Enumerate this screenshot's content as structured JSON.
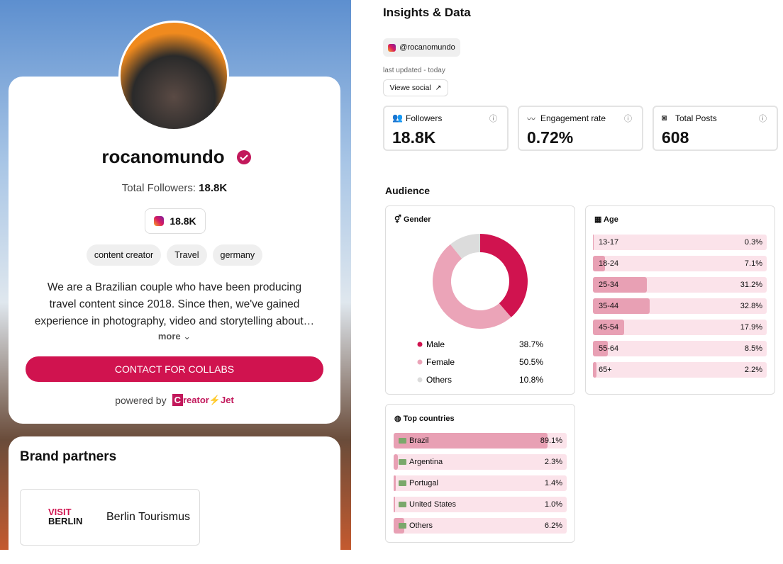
{
  "profile": {
    "name": "rocanomundo",
    "followers_label": "Total Followers:",
    "followers": "18.8K",
    "instagram_followers": "18.8K",
    "tags": [
      "content creator",
      "Travel",
      "germany"
    ],
    "bio": [
      "We are a Brazilian couple who have been producing",
      "travel content since 2018. Since then, we've gained",
      "experience in photography, video and storytelling about…"
    ],
    "more": "more",
    "button": "CONTACT FOR COLLABS",
    "powered_by": "powered by",
    "brand_initial": "C",
    "brand_name": "reator",
    "brand_suffix": "Jet"
  },
  "brand_partners": {
    "title": "Brand partners",
    "partners": [
      {
        "name": "Berlin Tourismus",
        "logo_top": "VISIT",
        "logo_bottom": "BERLIN"
      }
    ]
  },
  "insights": {
    "title": "Insights & Data",
    "handle": "@rocanomundo",
    "last_updated": "last updated - today",
    "view_button": "Viewe social",
    "stats": [
      {
        "label": "Followers",
        "value": "18.8K"
      },
      {
        "label": "Engagement rate",
        "value": "0.72%"
      },
      {
        "label": "Total Posts",
        "value": "608"
      }
    ]
  },
  "audience": {
    "title": "Audience",
    "gender": {
      "title": "Gender",
      "categories": [
        "Male",
        "Female",
        "Others"
      ],
      "values": [
        38.7,
        50.5,
        10.8
      ],
      "value_labels": [
        "38.7%",
        "50.5%",
        "10.8%"
      ],
      "colors": [
        "#d0134f",
        "#eba4b8",
        "#dcdcdc"
      ]
    },
    "age": {
      "title": "Age",
      "categories": [
        "13-17",
        "18-24",
        "25-34",
        "35-44",
        "45-54",
        "55-64",
        "65+"
      ],
      "values": [
        0.3,
        7.1,
        31.2,
        32.8,
        17.9,
        8.5,
        2.2
      ],
      "value_labels": [
        "0.3%",
        "7.1%",
        "31.2%",
        "32.8%",
        "17.9%",
        "8.5%",
        "2.2%"
      ]
    },
    "countries": {
      "title": "Top countries",
      "categories": [
        "Brazil",
        "Argentina",
        "Portugal",
        "United States",
        "Others"
      ],
      "values": [
        89.1,
        2.3,
        1.4,
        1.0,
        6.2
      ],
      "value_labels": [
        "89.1%",
        "2.3%",
        "1.4%",
        "1.0%",
        "6.2%"
      ]
    }
  }
}
